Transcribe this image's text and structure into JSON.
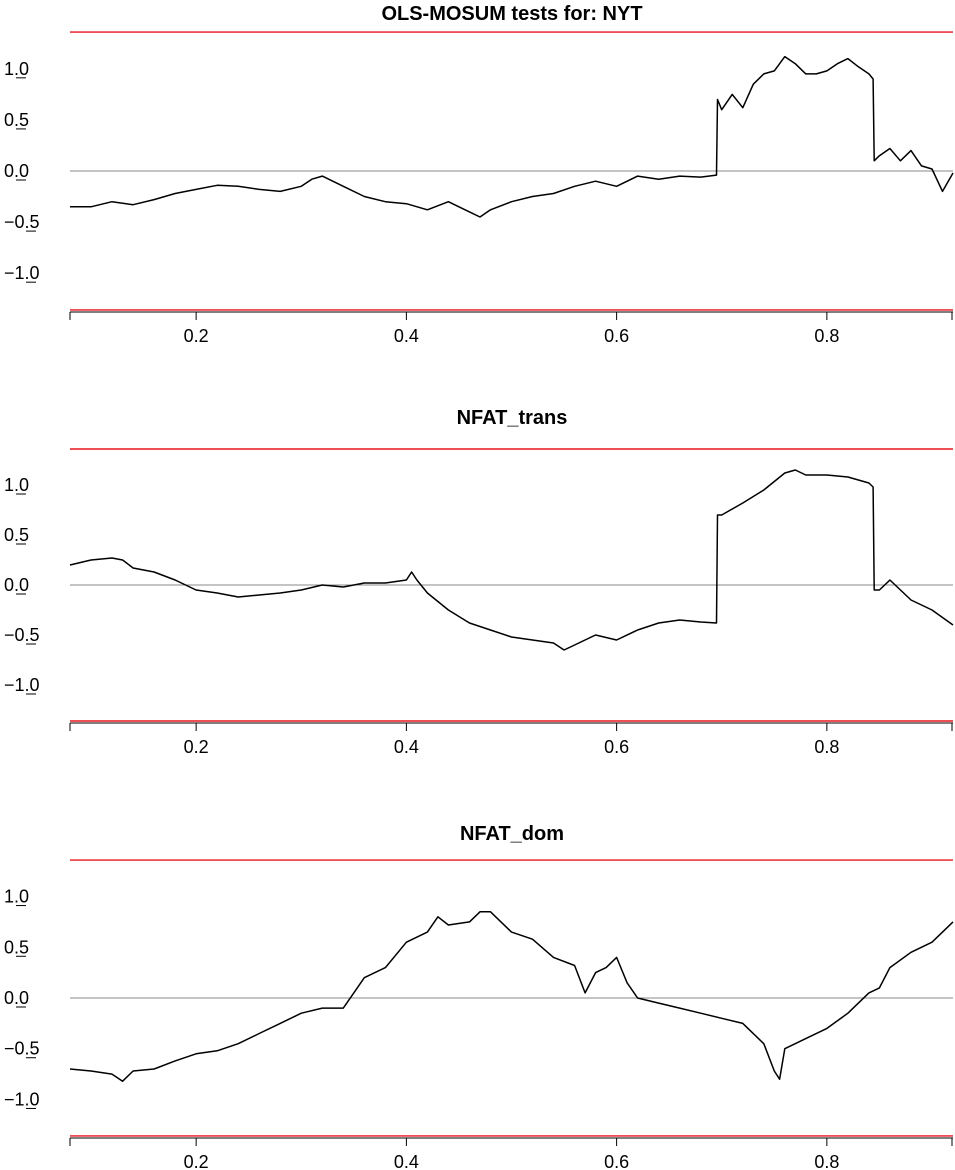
{
  "figure_title": "OLS-MOSUM tests for: NYT",
  "chart_data": [
    {
      "type": "line",
      "title": "OLS-MOSUM tests for: NYT",
      "xlim": [
        0.08,
        0.92
      ],
      "ylim": [
        -1.38,
        1.38
      ],
      "x_ticks": [
        "0.2",
        "0.4",
        "0.6",
        "0.8"
      ],
      "y_ticks": [
        "1.0",
        "0.5",
        "0.0",
        "−0.5",
        "−1.0"
      ],
      "boundaries": [
        1.36,
        -1.36
      ],
      "reference_line": 0,
      "colors": {
        "series": "#000000",
        "boundary": "#e8141c",
        "reference": "#888888"
      },
      "series": [
        {
          "x": [
            0.08,
            0.1,
            0.12,
            0.14,
            0.16,
            0.18,
            0.2,
            0.22,
            0.24,
            0.26,
            0.28,
            0.3,
            0.31,
            0.32,
            0.34,
            0.36,
            0.38,
            0.4,
            0.42,
            0.44,
            0.45,
            0.46,
            0.47,
            0.48,
            0.5,
            0.52,
            0.54,
            0.56,
            0.58,
            0.6,
            0.62,
            0.64,
            0.66,
            0.68,
            0.695,
            0.696,
            0.7,
            0.71,
            0.72,
            0.73,
            0.74,
            0.75,
            0.76,
            0.77,
            0.78,
            0.79,
            0.8,
            0.81,
            0.82,
            0.83,
            0.84,
            0.844,
            0.845,
            0.85,
            0.86,
            0.87,
            0.88,
            0.89,
            0.9,
            0.91,
            0.92
          ],
          "y": [
            -0.35,
            -0.35,
            -0.3,
            -0.33,
            -0.28,
            -0.22,
            -0.18,
            -0.14,
            -0.15,
            -0.18,
            -0.2,
            -0.15,
            -0.08,
            -0.05,
            -0.15,
            -0.25,
            -0.3,
            -0.32,
            -0.38,
            -0.3,
            -0.35,
            -0.4,
            -0.45,
            -0.38,
            -0.3,
            -0.25,
            -0.22,
            -0.15,
            -0.1,
            -0.15,
            -0.05,
            -0.08,
            -0.05,
            -0.06,
            -0.04,
            0.7,
            0.6,
            0.75,
            0.62,
            0.85,
            0.95,
            0.98,
            1.12,
            1.05,
            0.95,
            0.95,
            0.98,
            1.05,
            1.1,
            1.02,
            0.95,
            0.9,
            0.1,
            0.15,
            0.22,
            0.1,
            0.2,
            0.05,
            0.02,
            -0.2,
            -0.02
          ]
        }
      ]
    },
    {
      "type": "line",
      "title": "NFAT_trans",
      "xlim": [
        0.08,
        0.92
      ],
      "ylim": [
        -1.38,
        1.38
      ],
      "x_ticks": [
        "0.2",
        "0.4",
        "0.6",
        "0.8"
      ],
      "y_ticks": [
        "1.0",
        "0.5",
        "0.0",
        "−0.5",
        "−1.0"
      ],
      "boundaries": [
        1.36,
        -1.36
      ],
      "reference_line": 0,
      "colors": {
        "series": "#000000",
        "boundary": "#e8141c",
        "reference": "#888888"
      },
      "series": [
        {
          "x": [
            0.08,
            0.1,
            0.12,
            0.13,
            0.14,
            0.16,
            0.18,
            0.2,
            0.22,
            0.24,
            0.26,
            0.28,
            0.3,
            0.32,
            0.34,
            0.36,
            0.38,
            0.4,
            0.405,
            0.41,
            0.42,
            0.44,
            0.46,
            0.48,
            0.5,
            0.52,
            0.54,
            0.55,
            0.56,
            0.58,
            0.6,
            0.62,
            0.64,
            0.66,
            0.68,
            0.695,
            0.696,
            0.7,
            0.72,
            0.74,
            0.76,
            0.77,
            0.78,
            0.8,
            0.82,
            0.84,
            0.844,
            0.845,
            0.85,
            0.86,
            0.88,
            0.9,
            0.92
          ],
          "y": [
            0.2,
            0.25,
            0.27,
            0.25,
            0.17,
            0.13,
            0.05,
            -0.05,
            -0.08,
            -0.12,
            -0.1,
            -0.08,
            -0.05,
            0.0,
            -0.02,
            0.02,
            0.02,
            0.05,
            0.13,
            0.05,
            -0.08,
            -0.25,
            -0.38,
            -0.45,
            -0.52,
            -0.55,
            -0.58,
            -0.65,
            -0.6,
            -0.5,
            -0.55,
            -0.45,
            -0.38,
            -0.35,
            -0.37,
            -0.38,
            0.7,
            0.7,
            0.82,
            0.95,
            1.12,
            1.15,
            1.1,
            1.1,
            1.08,
            1.02,
            0.98,
            -0.05,
            -0.05,
            0.05,
            -0.15,
            -0.25,
            -0.4
          ]
        }
      ]
    },
    {
      "type": "line",
      "title": "NFAT_dom",
      "xlim": [
        0.08,
        0.92
      ],
      "ylim": [
        -1.38,
        1.38
      ],
      "x_ticks": [
        "0.2",
        "0.4",
        "0.6",
        "0.8"
      ],
      "y_ticks": [
        "1.0",
        "0.5",
        "0.0",
        "−0.5",
        "−1.0"
      ],
      "boundaries": [
        1.36,
        -1.36
      ],
      "reference_line": 0,
      "colors": {
        "series": "#000000",
        "boundary": "#e8141c",
        "reference": "#888888"
      },
      "series": [
        {
          "x": [
            0.08,
            0.1,
            0.12,
            0.13,
            0.14,
            0.16,
            0.18,
            0.2,
            0.22,
            0.24,
            0.26,
            0.28,
            0.3,
            0.32,
            0.34,
            0.35,
            0.36,
            0.38,
            0.4,
            0.42,
            0.43,
            0.44,
            0.46,
            0.47,
            0.48,
            0.5,
            0.52,
            0.54,
            0.56,
            0.57,
            0.58,
            0.59,
            0.6,
            0.61,
            0.62,
            0.64,
            0.66,
            0.68,
            0.7,
            0.72,
            0.74,
            0.75,
            0.755,
            0.76,
            0.78,
            0.8,
            0.82,
            0.84,
            0.85,
            0.86,
            0.88,
            0.9,
            0.92
          ],
          "y": [
            -0.7,
            -0.72,
            -0.75,
            -0.82,
            -0.72,
            -0.7,
            -0.62,
            -0.55,
            -0.52,
            -0.45,
            -0.35,
            -0.25,
            -0.15,
            -0.1,
            -0.1,
            0.05,
            0.2,
            0.3,
            0.55,
            0.65,
            0.8,
            0.72,
            0.75,
            0.85,
            0.85,
            0.65,
            0.58,
            0.4,
            0.32,
            0.05,
            0.25,
            0.3,
            0.4,
            0.15,
            0.0,
            -0.05,
            -0.1,
            -0.15,
            -0.2,
            -0.25,
            -0.45,
            -0.72,
            -0.8,
            -0.5,
            -0.4,
            -0.3,
            -0.15,
            0.05,
            0.1,
            0.3,
            0.45,
            0.55,
            0.75
          ]
        }
      ]
    }
  ]
}
